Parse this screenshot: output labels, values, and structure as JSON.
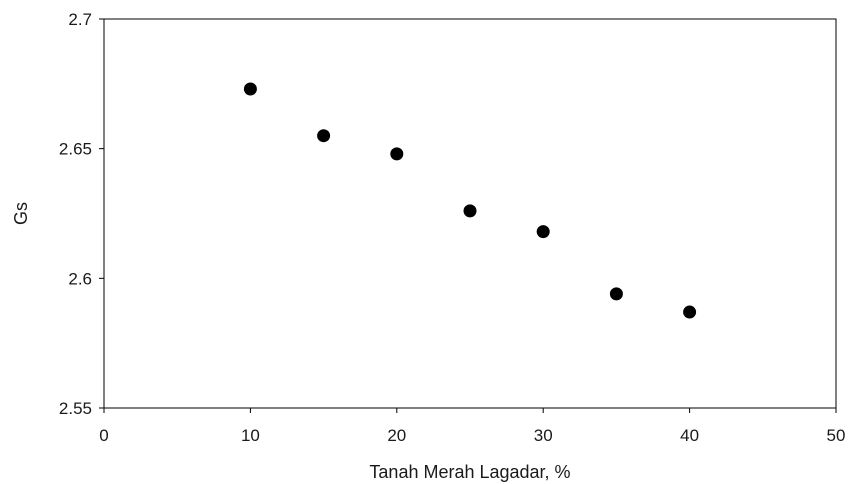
{
  "chart_data": {
    "type": "scatter",
    "title": "",
    "xlabel": "Tanah Merah Lagadar, %",
    "ylabel": "Gs",
    "xlim": [
      0,
      50
    ],
    "ylim": [
      2.55,
      2.7
    ],
    "x_ticks": [
      0,
      10,
      20,
      30,
      40,
      50
    ],
    "y_ticks": [
      2.55,
      2.6,
      2.65,
      2.7
    ],
    "x_tick_labels": [
      "0",
      "10",
      "20",
      "30",
      "40",
      "50"
    ],
    "y_tick_labels": [
      "2.55",
      "2.6",
      "2.65",
      "2.7"
    ],
    "grid": false,
    "legend": "none",
    "marker_color": "#000000",
    "axis_color": "#000000",
    "points": [
      {
        "x": 10,
        "y": 2.673
      },
      {
        "x": 15,
        "y": 2.655
      },
      {
        "x": 20,
        "y": 2.648
      },
      {
        "x": 25,
        "y": 2.626
      },
      {
        "x": 30,
        "y": 2.618
      },
      {
        "x": 35,
        "y": 2.594
      },
      {
        "x": 40,
        "y": 2.587
      }
    ]
  }
}
